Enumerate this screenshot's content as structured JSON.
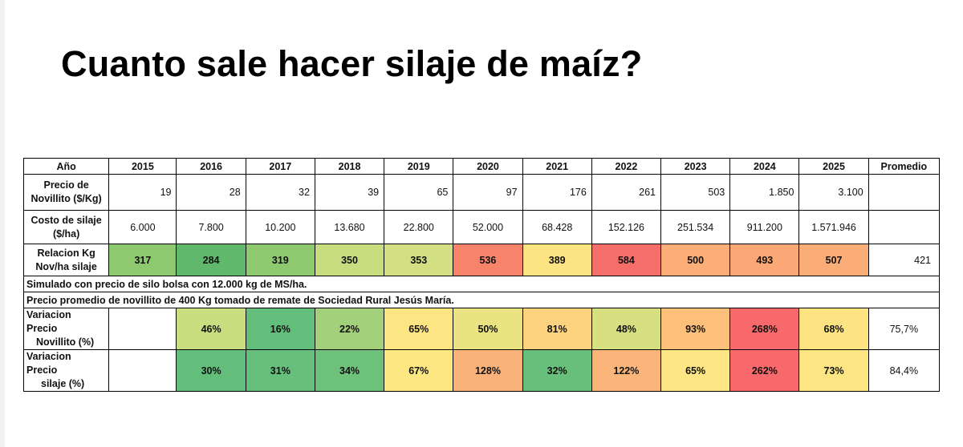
{
  "title": "Cuanto sale hacer silaje de maíz?",
  "table": {
    "header": [
      "Año",
      "2015",
      "2016",
      "2017",
      "2018",
      "2019",
      "2020",
      "2021",
      "2022",
      "2023",
      "2024",
      "2025",
      "Promedio"
    ],
    "precio_novillito": {
      "label_line1": "Precio de",
      "label_line2": "Novillito ($/Kg)",
      "values": [
        "19",
        "28",
        "32",
        "39",
        "65",
        "97",
        "176",
        "261",
        "503",
        "1.850",
        "3.100"
      ],
      "promedio": ""
    },
    "costo_silaje": {
      "label_line1": "Costo de silaje",
      "label_line2": "($/ha)",
      "values": [
        "6.000",
        "7.800",
        "10.200",
        "13.680",
        "22.800",
        "52.000",
        "68.428",
        "152.126",
        "251.534",
        "911.200",
        "1.571.946"
      ],
      "promedio": ""
    },
    "relacion": {
      "label_line1": "Relacion Kg",
      "label_line2": "Nov/ha silaje",
      "values": [
        "317",
        "284",
        "319",
        "350",
        "353",
        "536",
        "389",
        "584",
        "500",
        "493",
        "507"
      ],
      "colors": [
        "#8ec96f",
        "#5fb86b",
        "#8ec96f",
        "#c8dc80",
        "#d2df82",
        "#f7836b",
        "#fde482",
        "#f56e6a",
        "#fbae78",
        "#fba876",
        "#fbad77"
      ],
      "promedio": "421"
    },
    "note1": "Simulado con precio de silo bolsa con 12.000 kg de MS/ha.",
    "note2": "Precio promedio de novillito de 400 Kg tomado de remate de Sociedad Rural Jesús María.",
    "var_novillito": {
      "label_line1": "Variacion Precio",
      "label_line2": "Novillito (%)",
      "values": [
        "",
        "46%",
        "16%",
        "22%",
        "65%",
        "50%",
        "81%",
        "48%",
        "93%",
        "268%",
        "68%"
      ],
      "colors": [
        "#ffffff",
        "#c9dd81",
        "#63be7b",
        "#a3d07a",
        "#fde583",
        "#e9e382",
        "#fdd37f",
        "#d7e081",
        "#fcc07b",
        "#f8696b",
        "#fee382"
      ],
      "promedio": "75,7%"
    },
    "var_silaje": {
      "label_line1": "Variacion Precio",
      "label_line2": "silaje  (%)",
      "values": [
        "",
        "30%",
        "31%",
        "34%",
        "67%",
        "128%",
        "32%",
        "122%",
        "65%",
        "262%",
        "73%"
      ],
      "colors": [
        "#ffffff",
        "#63be7b",
        "#66bf7b",
        "#6ec17b",
        "#fde783",
        "#fbb27a",
        "#68bf7b",
        "#fbb57a",
        "#fde683",
        "#f8696b",
        "#fee583"
      ],
      "promedio": "84,4%"
    }
  }
}
